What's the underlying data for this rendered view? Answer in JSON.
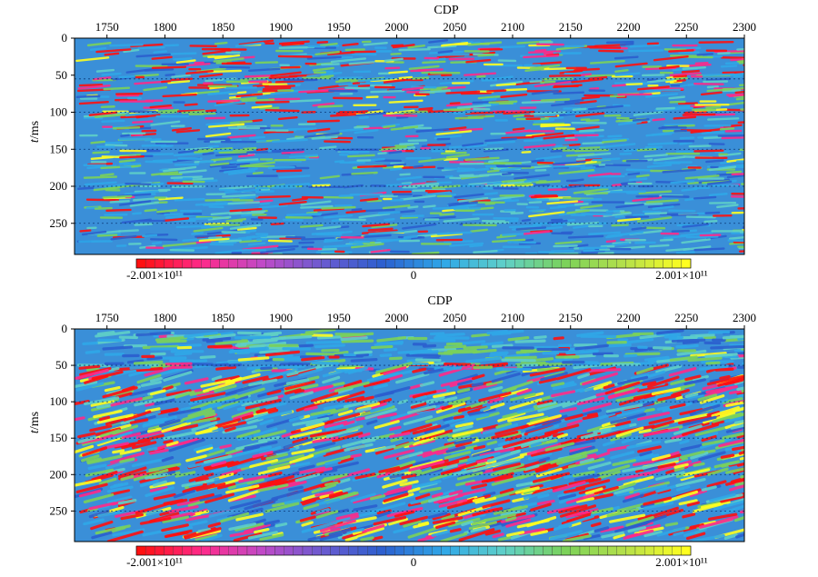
{
  "chart_data": [
    {
      "type": "heatmap",
      "title": "",
      "xlabel": "CDP",
      "ylabel_italic": "t",
      "ylabel_rest": "/ms",
      "x_ticks": [
        1750,
        1800,
        1850,
        1900,
        1950,
        2000,
        2050,
        2100,
        2150,
        2200,
        2250,
        2300
      ],
      "y_ticks": [
        0,
        50,
        100,
        150,
        200,
        250
      ],
      "xlim": [
        1722,
        2300
      ],
      "ylim": [
        0,
        292
      ],
      "colorbar": {
        "min_label": "-2.001×10¹¹",
        "mid_label": "0",
        "max_label": "2.001×10¹¹",
        "min": -200100000000.0,
        "max": 200100000000.0,
        "colors": [
          "#ff1010",
          "#ff2a8a",
          "#c04ac8",
          "#6a5bd0",
          "#2b5fcf",
          "#2fa8e8",
          "#5fd0c8",
          "#7bd25a",
          "#b6e04a",
          "#ffff20"
        ]
      },
      "background_color": "#3a8fd8",
      "reflector_times": [
        55,
        100,
        150,
        200,
        250
      ]
    },
    {
      "type": "heatmap",
      "title": "",
      "xlabel": "CDP",
      "ylabel_italic": "t",
      "ylabel_rest": "/ms",
      "x_ticks": [
        1750,
        1800,
        1850,
        1900,
        1950,
        2000,
        2050,
        2100,
        2150,
        2200,
        2250,
        2300
      ],
      "y_ticks": [
        0,
        50,
        100,
        150,
        200,
        250
      ],
      "xlim": [
        1722,
        2300
      ],
      "ylim": [
        0,
        292
      ],
      "colorbar": {
        "min_label": "-2.001×10¹¹",
        "mid_label": "0",
        "max_label": "2.001×10¹¹",
        "min": -200100000000.0,
        "max": 200100000000.0,
        "colors": [
          "#ff1010",
          "#ff2a8a",
          "#c04ac8",
          "#6a5bd0",
          "#2b5fcf",
          "#2fa8e8",
          "#5fd0c8",
          "#7bd25a",
          "#b6e04a",
          "#ffff20"
        ]
      },
      "background_color": "#3a8fd8",
      "reflector_times": [
        50,
        100,
        150,
        200,
        250
      ]
    }
  ]
}
